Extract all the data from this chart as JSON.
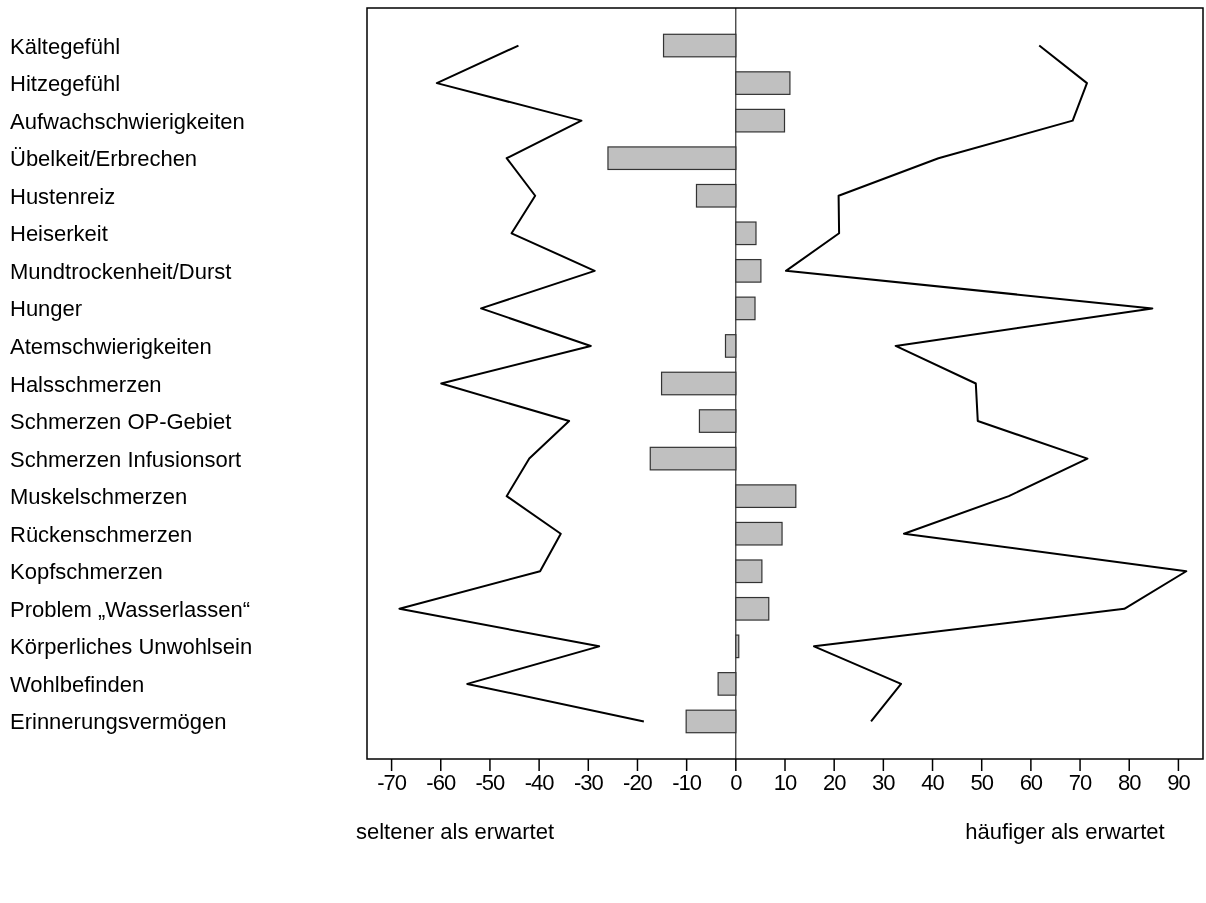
{
  "chart_data": {
    "type": "bar",
    "orientation": "horizontal",
    "categories": [
      "Kältegefühl",
      "Hitzegefühl",
      "Aufwachschwierigkeiten",
      "Übelkeit/Erbrechen",
      "Hustenreiz",
      "Heiserkeit",
      "Mundtrockenheit/Durst",
      "Hunger",
      "Atemschwierigkeiten",
      "Halsschmerzen",
      "Schmerzen OP-Gebiet",
      "Schmerzen Infusionsort",
      "Muskelschmerzen",
      "Rückenschmerzen",
      "Kopfschmerzen",
      "Problem  „Wasserlassen“",
      "Körperliches Unwohlsein",
      "Wohlbefinden",
      "Erinnerungsvermögen"
    ],
    "series": [
      {
        "color": "#c0c0c0",
        "values": [
          -14.7,
          11.0,
          9.9,
          -26.0,
          -8.0,
          4.1,
          5.1,
          3.9,
          -2.1,
          -15.1,
          -7.4,
          -17.4,
          12.2,
          9.4,
          5.3,
          6.7,
          0.6,
          -3.6,
          -10.1
        ]
      },
      {
        "type": "line",
        "color": "#000000",
        "values": [
          -44.2,
          -60.8,
          -31.4,
          -46.6,
          -40.8,
          -45.6,
          -28.7,
          -51.8,
          -29.5,
          -59.9,
          -33.9,
          -42.0,
          -46.6,
          -35.6,
          -39.8,
          -68.4,
          -27.8,
          -54.6,
          -18.7
        ]
      },
      {
        "type": "line",
        "color": "#000000",
        "values": [
          61.7,
          71.4,
          68.5,
          41.2,
          20.9,
          21.0,
          10.2,
          84.7,
          32.5,
          48.8,
          49.2,
          71.5,
          55.5,
          34.2,
          91.6,
          79.0,
          15.9,
          33.6,
          27.5
        ]
      }
    ],
    "xlim": [
      -75,
      95
    ],
    "xticks": [
      -70,
      -60,
      -50,
      -40,
      -30,
      -20,
      -10,
      0,
      10,
      20,
      30,
      40,
      50,
      60,
      70,
      80,
      90
    ],
    "line_style": "solid",
    "marker": "none",
    "annotations": [
      "seltener als erwartet",
      "häufiger als erwartet"
    ]
  }
}
